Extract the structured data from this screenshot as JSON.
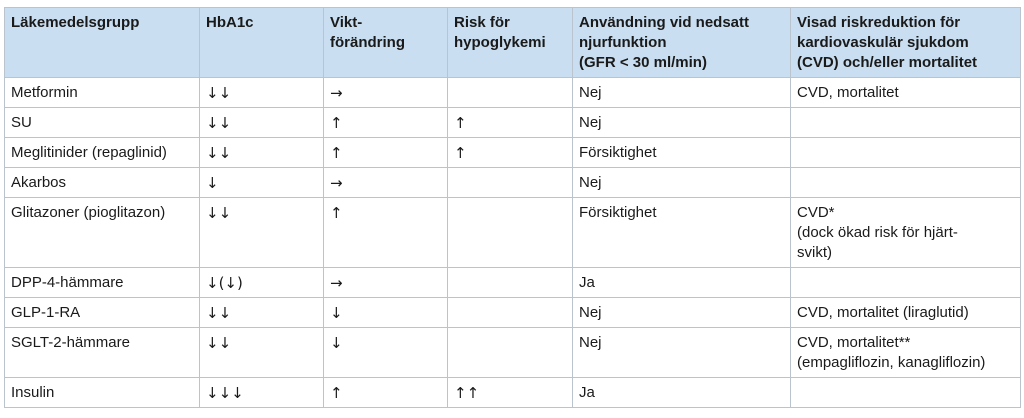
{
  "table": {
    "headers": [
      "Läkemedelsgrupp",
      "HbA1c",
      "Vikt-\nförändring",
      "Risk för\nhypoglykemi",
      "Användning vid nedsatt\nnjurfunktion\n(GFR < 30 ml/min)",
      "Visad riskreduktion för\nkardiovaskulär sjukdom\n(CVD) och/eller mortalitet"
    ],
    "rows": [
      [
        "Metformin",
        "↓↓",
        "→",
        "",
        "Nej",
        "CVD, mortalitet"
      ],
      [
        "SU",
        "↓↓",
        "↑",
        "↑",
        "Nej",
        ""
      ],
      [
        "Meglitinider (repaglinid)",
        "↓↓",
        "↑",
        "↑",
        "Försiktighet",
        ""
      ],
      [
        "Akarbos",
        "↓",
        "→",
        "",
        "Nej",
        ""
      ],
      [
        "Glitazoner (pioglitazon)",
        "↓↓",
        "↑",
        "",
        "Försiktighet",
        "CVD*\n(dock ökad risk för hjärt-\nsvikt)"
      ],
      [
        "DPP-4-hämmare",
        "↓(↓)",
        "→",
        "",
        "Ja",
        ""
      ],
      [
        "GLP-1-RA",
        "↓↓",
        "↓",
        "",
        "Nej",
        "CVD, mortalitet (liraglutid)"
      ],
      [
        "SGLT-2-hämmare",
        "↓↓",
        "↓",
        "",
        "Nej",
        "CVD, mortalitet**\n(empagliflozin, kanagliflozin)"
      ],
      [
        "Insulin",
        "↓↓↓",
        "↑",
        "↑↑",
        "Ja",
        ""
      ]
    ]
  }
}
